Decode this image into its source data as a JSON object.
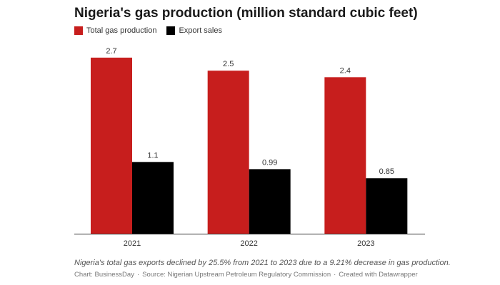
{
  "title": "Nigeria's gas production (million standard cubic feet)",
  "legend": [
    {
      "label": "Total gas production",
      "color": "#c71e1d"
    },
    {
      "label": "Export sales",
      "color": "#000000"
    }
  ],
  "chart_data": {
    "type": "bar",
    "categories": [
      "2021",
      "2022",
      "2023"
    ],
    "series": [
      {
        "name": "Total gas production",
        "values": [
          2.7,
          2.5,
          2.4
        ],
        "labels": [
          "2.7",
          "2.5",
          "2.4"
        ],
        "color": "#c71e1d"
      },
      {
        "name": "Export sales",
        "values": [
          1.1,
          0.99,
          0.85
        ],
        "labels": [
          "1.1",
          "0.99",
          "0.85"
        ],
        "color": "#000000"
      }
    ],
    "ylim": [
      0,
      2.95
    ],
    "grid": false,
    "legend_position": "top-left"
  },
  "footer": {
    "note": "Nigeria's total gas exports declined by 25.5% from 2021 to 2023 due to a 9.21% decrease in gas production.",
    "chart_credit": "Chart: BusinessDay",
    "source": "Source: Nigerian Upstream Petroleum Regulatory Commission",
    "created_with": "Created with Datawrapper"
  }
}
